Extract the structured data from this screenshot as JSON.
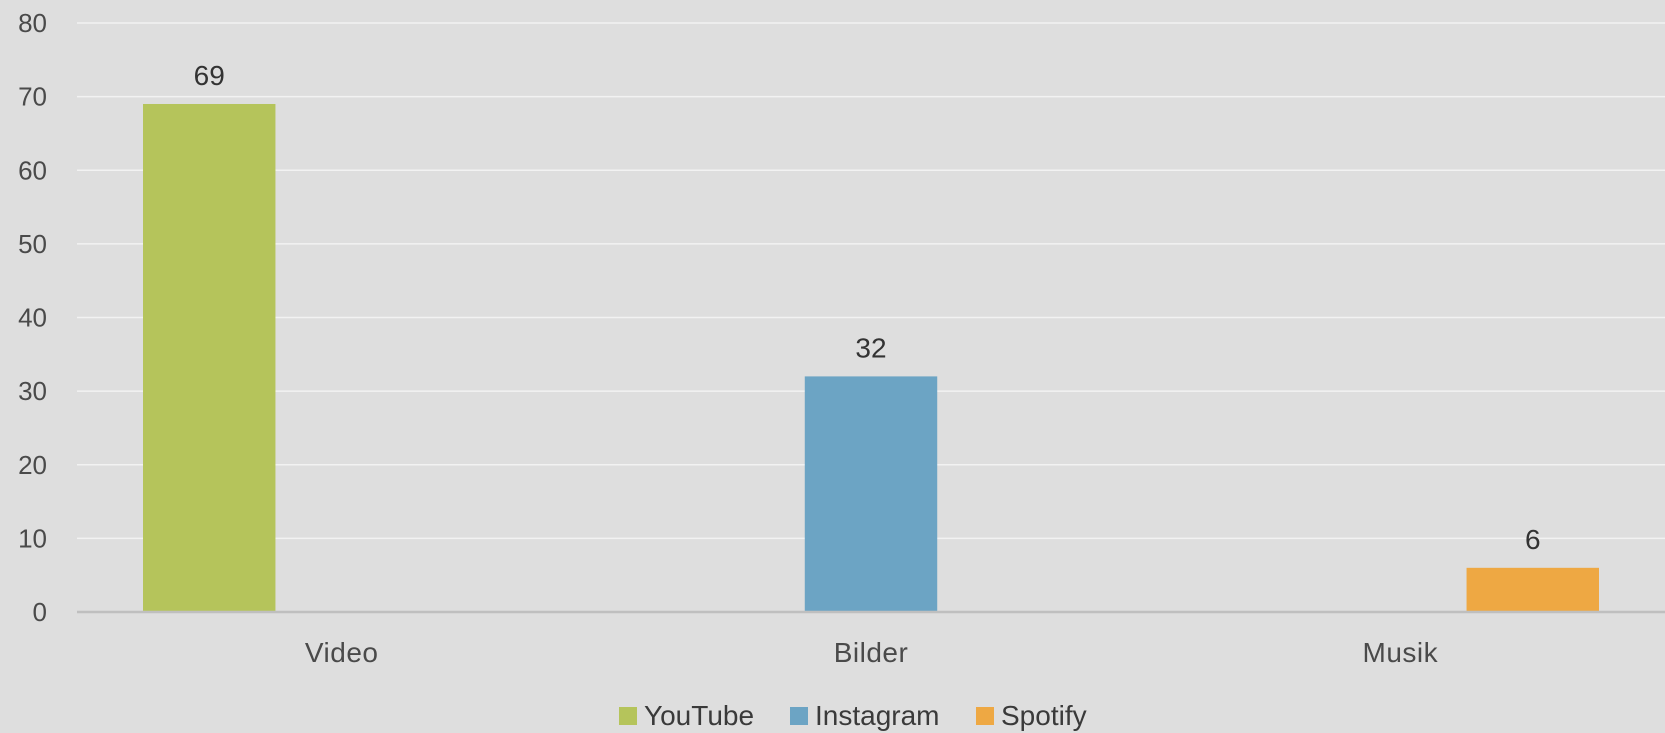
{
  "chart_data": {
    "type": "bar",
    "categories": [
      "Video",
      "Bilder",
      "Musik"
    ],
    "series": [
      {
        "name": "YouTube",
        "values": [
          69,
          null,
          null
        ],
        "color": "#b5c45b"
      },
      {
        "name": "Instagram",
        "values": [
          null,
          32,
          null
        ],
        "color": "#6ca4c4"
      },
      {
        "name": "Spotify",
        "values": [
          null,
          null,
          6
        ],
        "color": "#eea843"
      }
    ],
    "ylim": [
      0,
      80
    ],
    "yticks": [
      0,
      10,
      20,
      30,
      40,
      50,
      60,
      70,
      80
    ],
    "grid": true,
    "legend_position": "bottom",
    "background_color": "#dedede",
    "gridline_color": "#f2f2f2",
    "axis_color": "#bfbfbf"
  }
}
